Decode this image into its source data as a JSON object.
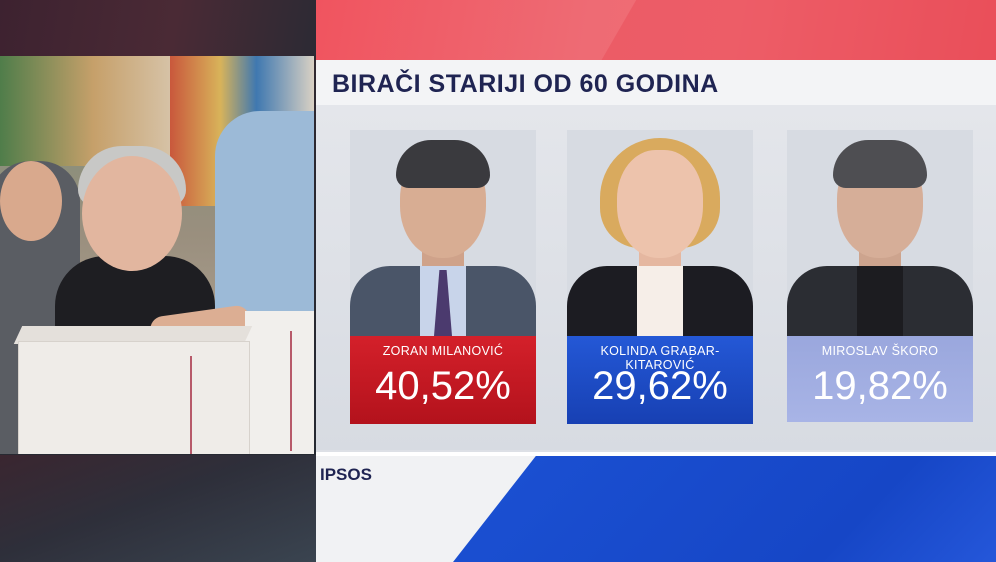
{
  "title": "BIRAČI STARIJI OD 60 GODINA",
  "source": "IPSOS",
  "candidates": [
    {
      "name": "ZORAN MILANOVIĆ",
      "percent": "40,52%",
      "color": "#c8161f"
    },
    {
      "name": "KOLINDA GRABAR-KITAROVIĆ",
      "percent": "29,62%",
      "color": "#1e4fcf"
    },
    {
      "name": "MIROSLAV ŠKORO",
      "percent": "19,82%",
      "color": "#a1addf"
    }
  ],
  "colors": {
    "title_text": "#1f2452",
    "stripe_red": "#f0545f",
    "stripe_blue": "#1a4fd1"
  }
}
